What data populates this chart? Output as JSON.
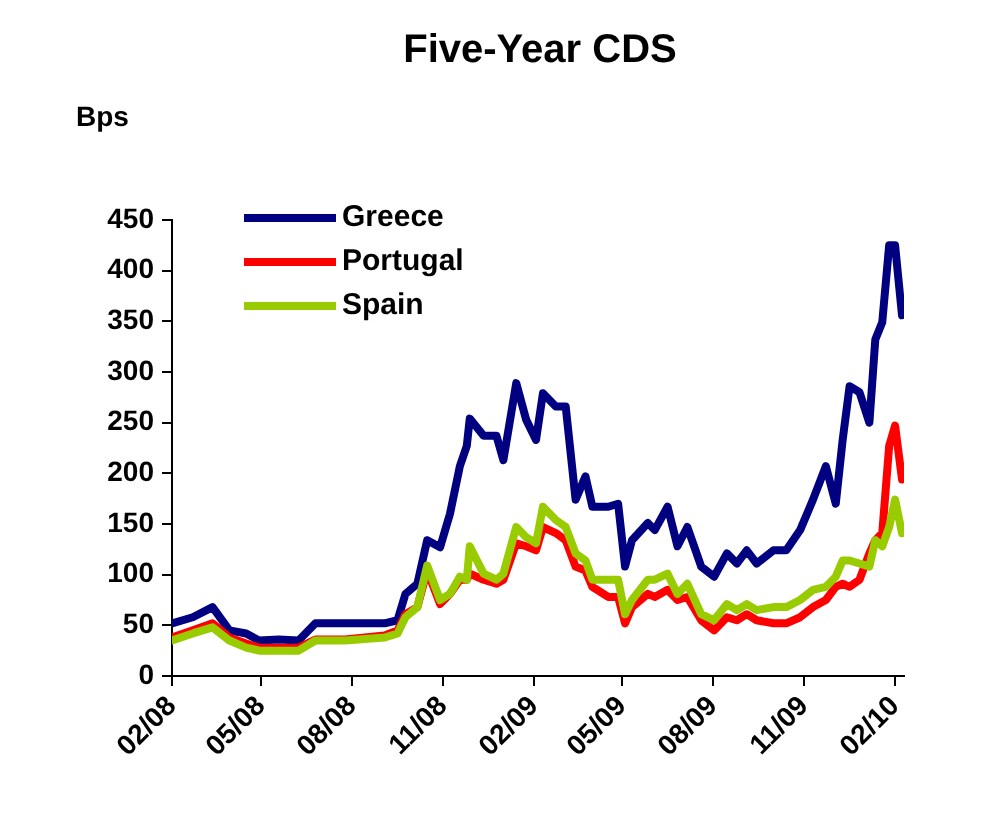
{
  "chart_data": {
    "type": "line",
    "title": "Five-Year CDS",
    "ylabel": "Bps",
    "x": [
      "2008-02-01",
      "2008-02-22",
      "2008-03-13",
      "2008-03-30",
      "2008-04-16",
      "2008-04-29",
      "2008-05-19",
      "2008-06-08",
      "2008-06-25",
      "2008-07-25",
      "2008-09-03",
      "2008-09-16",
      "2008-09-24",
      "2008-10-06",
      "2008-10-16",
      "2008-10-29",
      "2008-11-08",
      "2008-11-18",
      "2008-11-25",
      "2008-11-28",
      "2008-12-12",
      "2008-12-25",
      "2009-01-01",
      "2009-01-14",
      "2009-01-24",
      "2009-02-03",
      "2009-02-10",
      "2009-02-23",
      "2009-03-05",
      "2009-03-15",
      "2009-03-25",
      "2009-04-01",
      "2009-04-17",
      "2009-04-27",
      "2009-05-04",
      "2009-05-11",
      "2009-05-27",
      "2009-06-03",
      "2009-06-16",
      "2009-06-26",
      "2009-07-06",
      "2009-07-20",
      "2009-08-02",
      "2009-08-15",
      "2009-08-25",
      "2009-09-04",
      "2009-09-14",
      "2009-10-01",
      "2009-10-14",
      "2009-10-28",
      "2009-11-10",
      "2009-11-23",
      "2009-12-03",
      "2009-12-10",
      "2009-12-17",
      "2009-12-27",
      "2010-01-06",
      "2010-01-12",
      "2010-01-19",
      "2010-01-26",
      "2010-02-01",
      "2010-02-08"
    ],
    "series": [
      {
        "name": "Greece",
        "color": "#000080",
        "values": [
          52,
          58,
          68,
          45,
          42,
          35,
          36,
          35,
          52,
          52,
          52,
          55,
          81,
          91,
          134,
          127,
          160,
          207,
          227,
          254,
          237,
          237,
          213,
          289,
          253,
          233,
          279,
          266,
          266,
          174,
          197,
          167,
          167,
          170,
          108,
          134,
          151,
          144,
          167,
          128,
          147,
          108,
          98,
          121,
          111,
          124,
          111,
          124,
          124,
          144,
          174,
          207,
          170,
          233,
          286,
          280,
          250,
          332,
          349,
          425,
          425,
          356
        ]
      },
      {
        "name": "Portugal",
        "color": "#ff0000",
        "values": [
          38,
          45,
          52,
          38,
          32,
          28,
          28,
          28,
          36,
          36,
          40,
          45,
          61,
          68,
          104,
          71,
          81,
          95,
          95,
          101,
          95,
          91,
          95,
          131,
          128,
          124,
          147,
          141,
          134,
          108,
          104,
          88,
          78,
          78,
          52,
          68,
          81,
          78,
          85,
          75,
          78,
          55,
          45,
          58,
          55,
          61,
          55,
          52,
          52,
          58,
          68,
          75,
          88,
          91,
          88,
          95,
          121,
          134,
          141,
          227,
          247,
          194
        ]
      },
      {
        "name": "Spain",
        "color": "#99cc00",
        "values": [
          35,
          42,
          48,
          35,
          28,
          25,
          25,
          25,
          35,
          35,
          38,
          42,
          58,
          68,
          109,
          75,
          81,
          98,
          95,
          128,
          101,
          95,
          101,
          147,
          137,
          131,
          167,
          154,
          147,
          121,
          114,
          95,
          95,
          95,
          61,
          75,
          95,
          95,
          101,
          81,
          91,
          61,
          55,
          71,
          65,
          71,
          65,
          68,
          68,
          75,
          85,
          88,
          98,
          114,
          114,
          111,
          108,
          134,
          128,
          147,
          174,
          141
        ]
      }
    ],
    "xlim": [
      "2008-02-01",
      "2010-02-10"
    ],
    "xticks": [
      {
        "value": "2008-02-01",
        "label": "02/08"
      },
      {
        "value": "2008-05-01",
        "label": "05/08"
      },
      {
        "value": "2008-08-01",
        "label": "08/08"
      },
      {
        "value": "2008-11-01",
        "label": "11/08"
      },
      {
        "value": "2009-02-01",
        "label": "02/09"
      },
      {
        "value": "2009-05-01",
        "label": "05/09"
      },
      {
        "value": "2009-08-01",
        "label": "08/09"
      },
      {
        "value": "2009-11-01",
        "label": "11/09"
      },
      {
        "value": "2010-02-01",
        "label": "02/10"
      }
    ],
    "ylim": [
      0,
      450
    ],
    "yticks": [
      0,
      50,
      100,
      150,
      200,
      250,
      300,
      350,
      400,
      450
    ],
    "grid": false,
    "legend": "top left",
    "marker": "none",
    "line_style": "solid"
  }
}
